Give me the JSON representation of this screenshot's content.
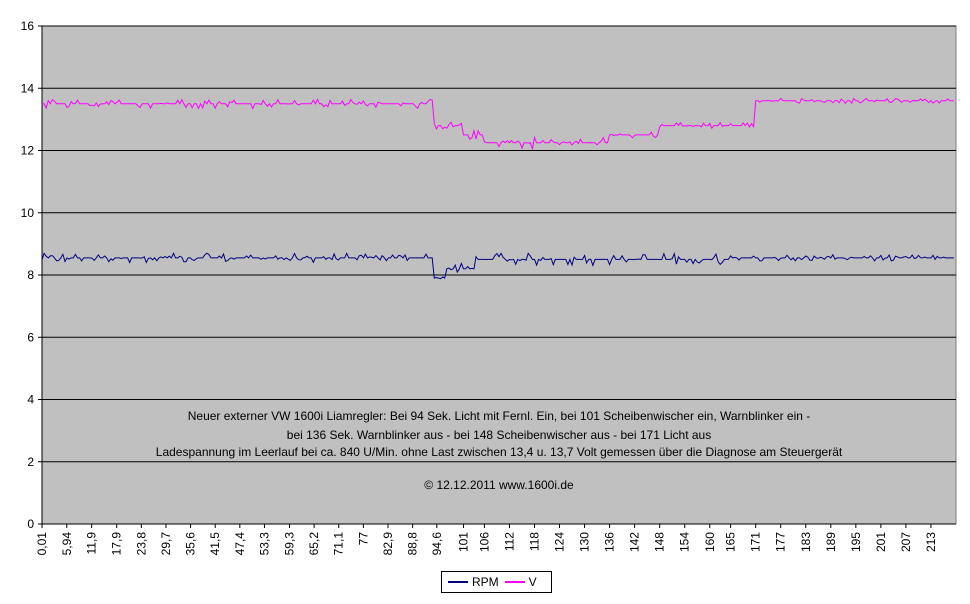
{
  "chart_data": {
    "type": "line",
    "title": "",
    "xlabel": "",
    "ylabel": "",
    "ylim": [
      0,
      16
    ],
    "y_ticks": [
      "0",
      "2",
      "4",
      "6",
      "8",
      "10",
      "12",
      "14",
      "16"
    ],
    "x_tick_labels": [
      "0,01",
      "5,94",
      "11,9",
      "17,9",
      "23,8",
      "29,7",
      "35,6",
      "41,5",
      "47,4",
      "53,3",
      "59,3",
      "65,2",
      "71,1",
      "77",
      "82,9",
      "88,8",
      "94,6",
      "101",
      "106",
      "112",
      "118",
      "124",
      "130",
      "136",
      "142",
      "148",
      "154",
      "160",
      "165",
      "171",
      "177",
      "183",
      "189",
      "195",
      "201",
      "207",
      "213"
    ],
    "x_tick_values": [
      0.01,
      5.94,
      11.9,
      17.9,
      23.8,
      29.7,
      35.6,
      41.5,
      47.4,
      53.3,
      59.3,
      65.2,
      71.1,
      77,
      82.9,
      88.8,
      94.6,
      101,
      106,
      112,
      118,
      124,
      130,
      136,
      142,
      148,
      154,
      160,
      165,
      171,
      177,
      183,
      189,
      195,
      201,
      207,
      213
    ],
    "xlim": [
      0,
      219
    ],
    "grid": "horizontal",
    "plot_background": "#C0C0C0",
    "legend_position": "bottom-center",
    "series": [
      {
        "name": "RPM",
        "color": "#000080",
        "segments": [
          {
            "x": [
              0,
              94
            ],
            "y": 8.55,
            "jitter": 0.15
          },
          {
            "x": [
              94,
              97
            ],
            "y": 7.9,
            "jitter": 0.15
          },
          {
            "x": [
              97,
              104
            ],
            "y": 8.2,
            "jitter": 0.2
          },
          {
            "x": [
              104,
              165
            ],
            "y": 8.5,
            "jitter": 0.2
          },
          {
            "x": [
              165,
              219
            ],
            "y": 8.55,
            "jitter": 0.1
          }
        ]
      },
      {
        "name": "V",
        "color": "#FF00FF",
        "segments": [
          {
            "x": [
              0,
              94
            ],
            "y": 13.5,
            "jitter": 0.15
          },
          {
            "x": [
              94,
              101
            ],
            "y": 12.8,
            "jitter": 0.12
          },
          {
            "x": [
              101,
              106
            ],
            "y": 12.5,
            "jitter": 0.15
          },
          {
            "x": [
              106,
              136
            ],
            "y": 12.25,
            "jitter": 0.2
          },
          {
            "x": [
              136,
              148
            ],
            "y": 12.5,
            "jitter": 0.1
          },
          {
            "x": [
              148,
              171
            ],
            "y": 12.8,
            "jitter": 0.1
          },
          {
            "x": [
              171,
              219
            ],
            "y": 13.6,
            "jitter": 0.08
          }
        ]
      }
    ],
    "annotations": [
      "Neuer externer VW 1600i Liamregler: Bei 94 Sek. Licht mit Fernl. Ein, bei 101 Scheibenwischer ein, Warnblinker ein -",
      "bei 136 Sek. Warnblinker aus - bei 148 Scheibenwischer aus - bei 171 Licht aus",
      "Ladespannung im Leerlauf bei ca. 840 U/Min. ohne Last zwischen 13,4 u. 13,7 Volt gemessen über die Diagnose am Steuergerät",
      "© 12.12.2011 www.1600i.de"
    ]
  }
}
